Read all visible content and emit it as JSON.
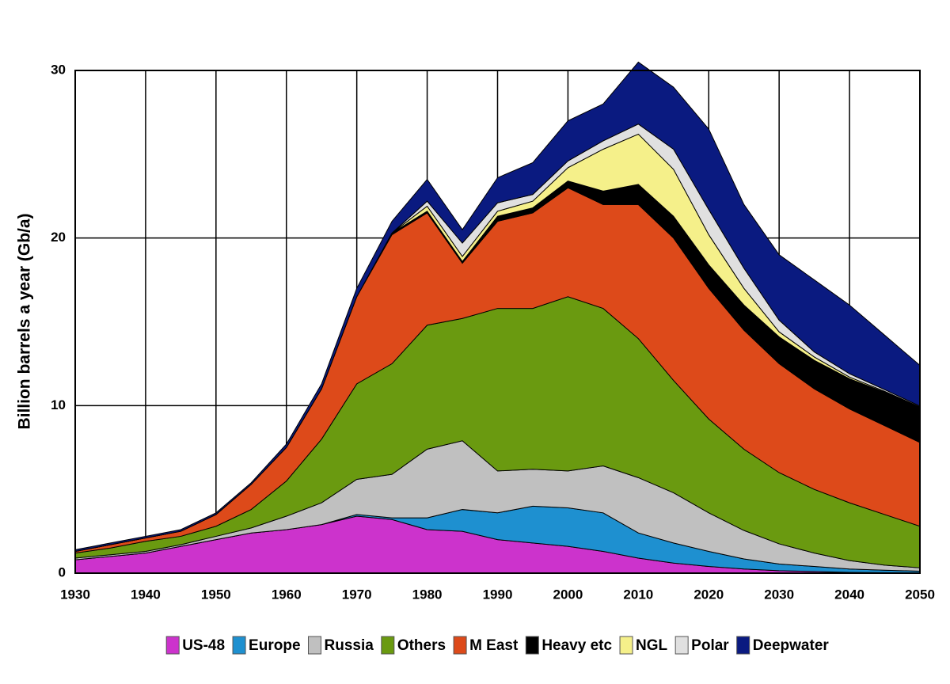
{
  "chart_data": {
    "type": "stacked_area",
    "y_label": "Billion barrels a year (Gb/a)",
    "x": [
      1930,
      1935,
      1940,
      1945,
      1950,
      1955,
      1960,
      1965,
      1970,
      1975,
      1980,
      1985,
      1990,
      1995,
      2000,
      2005,
      2010,
      2015,
      2020,
      2025,
      2030,
      2035,
      2040,
      2045,
      2050
    ],
    "xlim": [
      1930,
      2050
    ],
    "xticks": [
      1930,
      1940,
      1950,
      1960,
      1970,
      1980,
      1990,
      2000,
      2010,
      2020,
      2030,
      2040,
      2050
    ],
    "ylim": [
      0,
      30
    ],
    "yticks": [
      0,
      10,
      20,
      30
    ],
    "grid": true,
    "series": [
      {
        "name": "US-48",
        "color": "#cc33cc",
        "values": [
          0.8,
          1.0,
          1.2,
          1.6,
          2.0,
          2.4,
          2.6,
          2.9,
          3.4,
          3.2,
          2.6,
          2.5,
          2.0,
          1.8,
          1.6,
          1.3,
          0.9,
          0.6,
          0.4,
          0.25,
          0.15,
          0.1,
          0.05,
          0.03,
          0.02
        ]
      },
      {
        "name": "Europe",
        "color": "#1e90d0",
        "values": [
          0,
          0,
          0,
          0,
          0,
          0,
          0,
          0,
          0.1,
          0.1,
          0.7,
          1.3,
          1.6,
          2.2,
          2.3,
          2.3,
          1.5,
          1.2,
          0.9,
          0.6,
          0.4,
          0.3,
          0.2,
          0.15,
          0.1
        ]
      },
      {
        "name": "Russia",
        "color": "#c0c0c0",
        "values": [
          0.1,
          0.1,
          0.1,
          0.1,
          0.2,
          0.3,
          0.8,
          1.3,
          2.1,
          2.6,
          4.1,
          4.1,
          2.5,
          2.2,
          2.2,
          2.8,
          3.3,
          3.0,
          2.3,
          1.7,
          1.2,
          0.8,
          0.5,
          0.3,
          0.2
        ]
      },
      {
        "name": "Others",
        "color": "#6a9a10",
        "values": [
          0.3,
          0.4,
          0.6,
          0.5,
          0.6,
          1.1,
          2.1,
          3.8,
          5.7,
          6.6,
          7.4,
          7.3,
          9.7,
          9.6,
          10.4,
          9.4,
          8.3,
          6.7,
          5.6,
          4.85,
          4.25,
          3.8,
          3.45,
          3.02,
          2.48
        ]
      },
      {
        "name": "M East",
        "color": "#dd4a1a",
        "values": [
          0.1,
          0.2,
          0.2,
          0.3,
          0.7,
          1.5,
          2.0,
          3.0,
          5.2,
          7.7,
          6.7,
          3.3,
          5.2,
          5.7,
          6.5,
          6.2,
          8.0,
          8.5,
          7.8,
          7.1,
          6.5,
          6.0,
          5.6,
          5.3,
          5.0
        ]
      },
      {
        "name": "Heavy etc",
        "color": "#000000",
        "values": [
          0,
          0,
          0,
          0,
          0,
          0,
          0,
          0,
          0,
          0.1,
          0.1,
          0.1,
          0.3,
          0.3,
          0.4,
          0.8,
          1.2,
          1.3,
          1.4,
          1.5,
          1.6,
          1.7,
          1.8,
          2.0,
          2.1
        ]
      },
      {
        "name": "NGL",
        "color": "#f5f08a",
        "values": [
          0,
          0,
          0,
          0,
          0,
          0,
          0,
          0,
          0,
          0,
          0.3,
          0.3,
          0.3,
          0.4,
          0.8,
          2.5,
          3.0,
          2.8,
          1.8,
          1.0,
          0.3,
          0.2,
          0.1,
          0.05,
          0.02
        ]
      },
      {
        "name": "Polar",
        "color": "#e0e0e0",
        "values": [
          0,
          0,
          0,
          0,
          0,
          0,
          0,
          0,
          0,
          0,
          0.3,
          0.8,
          0.5,
          0.4,
          0.4,
          0.5,
          0.6,
          1.2,
          1.5,
          1.2,
          0.7,
          0.3,
          0.2,
          0.1,
          0.05
        ]
      },
      {
        "name": "Deepwater",
        "color": "#0a1a80",
        "values": [
          0.1,
          0.1,
          0.1,
          0.1,
          0.1,
          0.1,
          0.2,
          0.3,
          0.5,
          0.7,
          1.3,
          0.8,
          1.5,
          1.9,
          2.4,
          2.2,
          3.7,
          3.7,
          4.8,
          3.8,
          3.9,
          4.3,
          4.1,
          3.25,
          2.43
        ]
      }
    ]
  }
}
